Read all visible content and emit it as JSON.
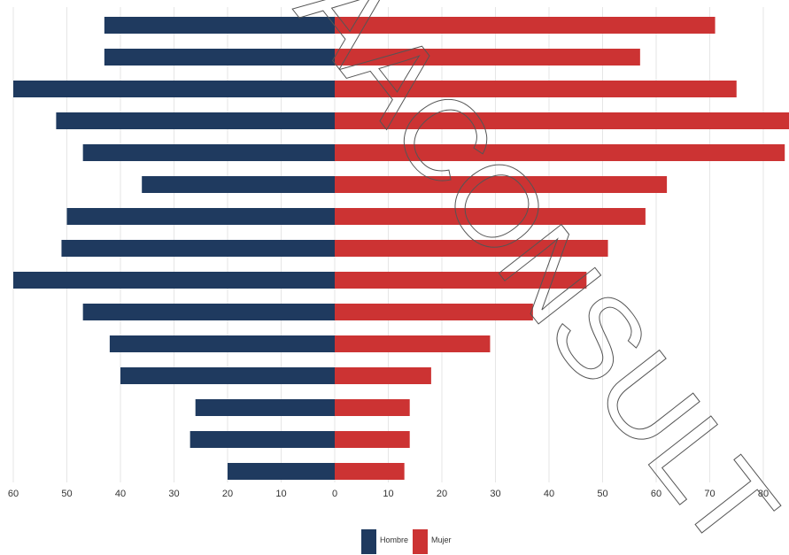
{
  "chart_data": {
    "type": "bar",
    "orientation": "horizontal-diverging",
    "title": "",
    "xlabel": "",
    "ylabel": "",
    "xlim": [
      -60,
      85
    ],
    "x_ticks": [
      -60,
      -50,
      -40,
      -30,
      -20,
      -10,
      0,
      10,
      20,
      30,
      40,
      50,
      60,
      70,
      80
    ],
    "x_tick_labels": [
      "60",
      "50",
      "40",
      "30",
      "20",
      "10",
      "0",
      "10",
      "20",
      "30",
      "40",
      "50",
      "60",
      "70",
      "80"
    ],
    "grid": "vertical",
    "legend_position": "bottom-center",
    "series": [
      {
        "name": "Hombre",
        "color": "#1f3a5f",
        "values": [
          43,
          43,
          60,
          52,
          47,
          36,
          50,
          51,
          60,
          47,
          42,
          40,
          26,
          27,
          20
        ]
      },
      {
        "name": "Mujer",
        "color": "#cc3333",
        "values": [
          71,
          57,
          75,
          85,
          84,
          62,
          58,
          51,
          47,
          37,
          29,
          18,
          14,
          14,
          13
        ]
      }
    ]
  },
  "watermark": "AACONSULT"
}
